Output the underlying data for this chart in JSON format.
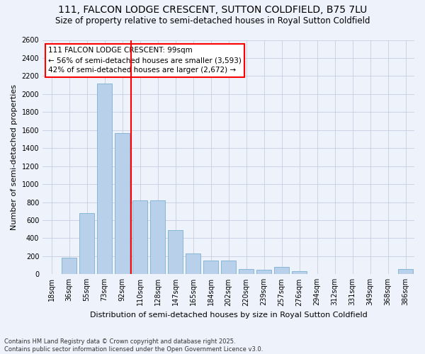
{
  "title": "111, FALCON LODGE CRESCENT, SUTTON COLDFIELD, B75 7LU",
  "subtitle": "Size of property relative to semi-detached houses in Royal Sutton Coldfield",
  "xlabel": "Distribution of semi-detached houses by size in Royal Sutton Coldfield",
  "ylabel": "Number of semi-detached properties",
  "categories": [
    "18sqm",
    "36sqm",
    "55sqm",
    "73sqm",
    "92sqm",
    "110sqm",
    "128sqm",
    "147sqm",
    "165sqm",
    "184sqm",
    "202sqm",
    "220sqm",
    "239sqm",
    "257sqm",
    "276sqm",
    "294sqm",
    "312sqm",
    "331sqm",
    "349sqm",
    "368sqm",
    "386sqm"
  ],
  "values": [
    5,
    185,
    680,
    2120,
    1570,
    820,
    820,
    490,
    230,
    150,
    150,
    60,
    50,
    80,
    30,
    5,
    5,
    0,
    5,
    0,
    60
  ],
  "bar_color": "#b8d0ea",
  "bar_edge_color": "#7bafd4",
  "vline_x": 4.5,
  "vline_color": "red",
  "annotation_line1": "111 FALCON LODGE CRESCENT: 99sqm",
  "annotation_line2": "← 56% of semi-detached houses are smaller (3,593)",
  "annotation_line3": "42% of semi-detached houses are larger (2,672) →",
  "annotation_box_color": "white",
  "annotation_box_edge_color": "red",
  "ylim": [
    0,
    2600
  ],
  "yticks": [
    0,
    200,
    400,
    600,
    800,
    1000,
    1200,
    1400,
    1600,
    1800,
    2000,
    2200,
    2400,
    2600
  ],
  "footnote": "Contains HM Land Registry data © Crown copyright and database right 2025.\nContains public sector information licensed under the Open Government Licence v3.0.",
  "bg_color": "#eef2fb",
  "grid_color": "#c5cde0",
  "title_fontsize": 10,
  "subtitle_fontsize": 8.5,
  "axis_label_fontsize": 8,
  "tick_fontsize": 7,
  "annotation_fontsize": 7.5,
  "footnote_fontsize": 6
}
